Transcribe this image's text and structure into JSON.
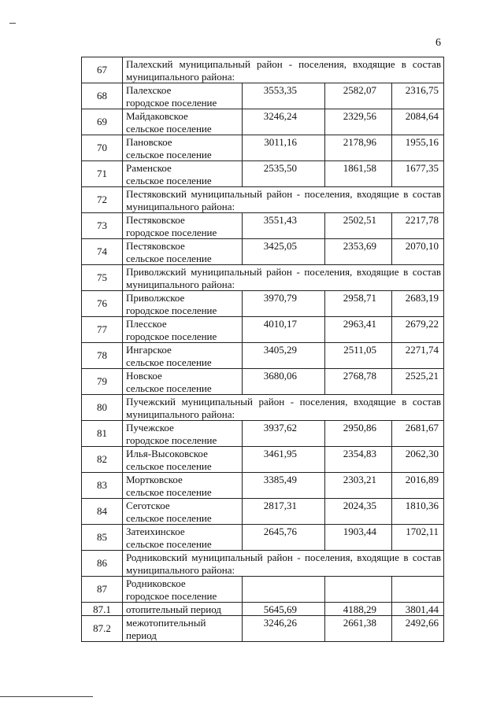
{
  "page_number": "6",
  "rows": [
    {
      "num": "67",
      "header": "Палехский муниципальный район - поселения, входящие в состав муниципального района:"
    },
    {
      "num": "68",
      "name": [
        "Палехское",
        "городское поселение"
      ],
      "values": [
        "3553,35",
        "2582,07",
        "2316,75"
      ]
    },
    {
      "num": "69",
      "name": [
        "Майдаковское",
        "сельское поселение"
      ],
      "values": [
        "3246,24",
        "2329,56",
        "2084,64"
      ]
    },
    {
      "num": "70",
      "name": [
        "Пановское",
        "сельское поселение"
      ],
      "values": [
        "3011,16",
        "2178,96",
        "1955,16"
      ]
    },
    {
      "num": "71",
      "name": [
        "Раменское",
        "сельское поселение"
      ],
      "values": [
        "2535,50",
        "1861,58",
        "1677,35"
      ]
    },
    {
      "num": "72",
      "header": "Пестяковский муниципальный район - поселения, входящие в состав муниципального района:"
    },
    {
      "num": "73",
      "name": [
        "Пестяковское",
        "городское поселение"
      ],
      "values": [
        "3551,43",
        "2502,51",
        "2217,78"
      ]
    },
    {
      "num": "74",
      "name": [
        "Пестяковское",
        "сельское поселение"
      ],
      "values": [
        "3425,05",
        "2353,69",
        "2070,10"
      ]
    },
    {
      "num": "75",
      "header": "Приволжский муниципальный район - поселения, входящие в состав муниципального района:"
    },
    {
      "num": "76",
      "name": [
        "Приволжское",
        "городское поселение"
      ],
      "values": [
        "3970,79",
        "2958,71",
        "2683,19"
      ]
    },
    {
      "num": "77",
      "name": [
        "Плесское",
        "городское поселение"
      ],
      "values": [
        "4010,17",
        "2963,41",
        "2679,22"
      ]
    },
    {
      "num": "78",
      "name": [
        "Ингарское",
        "сельское поселение"
      ],
      "values": [
        "3405,29",
        "2511,05",
        "2271,74"
      ]
    },
    {
      "num": "79",
      "name": [
        "Новское",
        "сельское поселение"
      ],
      "values": [
        "3680,06",
        "2768,78",
        "2525,21"
      ]
    },
    {
      "num": "80",
      "header": "Пучежский муниципальный район - поселения, входящие в состав муниципального района:"
    },
    {
      "num": "81",
      "name": [
        "Пучежское",
        "городское поселение"
      ],
      "values": [
        "3937,62",
        "2950,86",
        "2681,67"
      ]
    },
    {
      "num": "82",
      "name": [
        "Илья-Высоковское",
        "сельское поселение"
      ],
      "values": [
        "3461,95",
        "2354,83",
        "2062,30"
      ]
    },
    {
      "num": "83",
      "name": [
        "Мортковское",
        "сельское поселение"
      ],
      "values": [
        "3385,49",
        "2303,21",
        "2016,89"
      ]
    },
    {
      "num": "84",
      "name": [
        "Сеготское",
        "сельское поселение"
      ],
      "values": [
        "2817,31",
        "2024,35",
        "1810,36"
      ]
    },
    {
      "num": "85",
      "name": [
        "Затеихинское",
        "сельское поселение"
      ],
      "values": [
        "2645,76",
        "1903,44",
        "1702,11"
      ]
    },
    {
      "num": "86",
      "header": "Родниковский муниципальный район - поселения, входящие в состав муниципального района:"
    },
    {
      "num": "87",
      "name": [
        "Родниковское",
        "городское поселение"
      ],
      "values": [
        "",
        "",
        ""
      ]
    },
    {
      "num": "87.1",
      "name": [
        "отопительный период"
      ],
      "values": [
        "5645,69",
        "4188,29",
        "3801,44"
      ]
    },
    {
      "num": "87.2",
      "name": [
        "межотопительный",
        "период"
      ],
      "values": [
        "3246,26",
        "2661,38",
        "2492,66"
      ]
    }
  ]
}
